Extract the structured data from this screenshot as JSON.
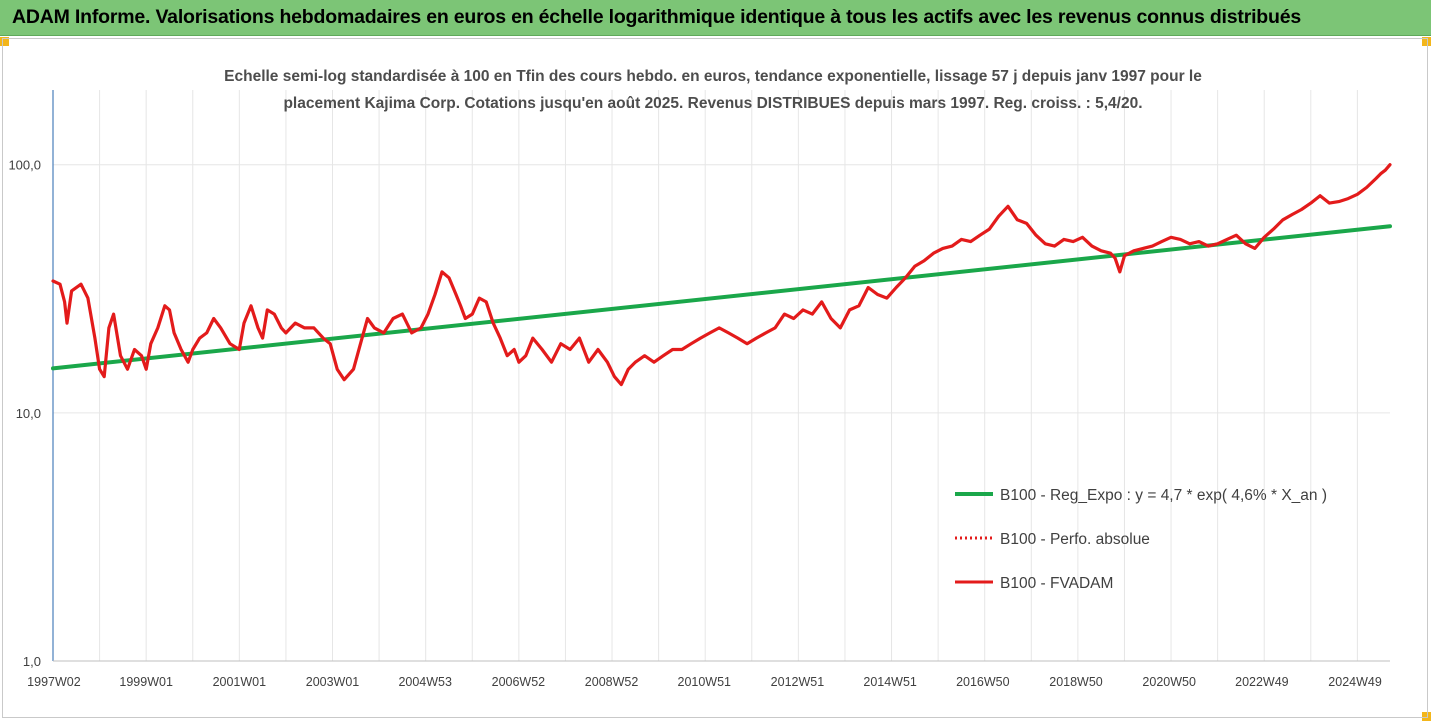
{
  "banner": {
    "title": "ADAM Informe. Valorisations hebdomadaires en euros en échelle logarithmique identique à tous les actifs avec les revenus connus distribués"
  },
  "colors": {
    "banner_bg": "#7cc576",
    "corner_marker": "#f3b61b",
    "reg_expo": "#1aa74a",
    "fvadam": "#e31b1b",
    "perfo_absolue": "#e31b1b",
    "axis_line": "#4a7ebb",
    "grid": "#e6e6e6",
    "text": "#404040",
    "title_text": "#4d4d4d"
  },
  "chart_data": {
    "type": "line",
    "title_lines": [
      "Echelle semi-log standardisée à 100 en Tfin des cours hebdo. en euros, tendance exponentielle, lissage 57 j depuis janv 1997 pour le",
      "placement Kajima Corp. Cotations jusqu'en août 2025. Revenus DISTRIBUES depuis mars 1997. Reg. croiss. : 5,4/20."
    ],
    "y_scale": "log",
    "ylim": [
      1,
      200
    ],
    "y_ticks": [
      1,
      10,
      100
    ],
    "y_tick_labels": [
      "1,0",
      "10,0",
      "100,0"
    ],
    "x_range": [
      1997.0,
      2025.7
    ],
    "x_tick_labels": [
      "1997W02",
      "1999W01",
      "2001W01",
      "2003W01",
      "2004W53",
      "2006W52",
      "2008W52",
      "2010W51",
      "2012W51",
      "2014W51",
      "2016W50",
      "2018W50",
      "2020W50",
      "2022W49",
      "2024W49"
    ],
    "x_tick_positions": [
      1997.02,
      1999.0,
      2001.0,
      2003.0,
      2004.99,
      2006.99,
      2008.99,
      2010.98,
      2012.98,
      2014.97,
      2016.96,
      2018.96,
      2020.96,
      2022.95,
      2024.95
    ],
    "grid": "vertical",
    "legend_position": "bottom-right",
    "series": [
      {
        "name": "B100 - Reg_Expo : y = 4,7 * exp( 4,6% *  X_an )",
        "style": "solid",
        "color": "#1aa74a",
        "x": [
          1997.0,
          2025.7
        ],
        "values": [
          15.1,
          56.5
        ]
      },
      {
        "name": "B100 - Perfo. absolue",
        "style": "dotted",
        "color": "#e31b1b",
        "x": [],
        "values": []
      },
      {
        "name": "B100 - FVADAM",
        "style": "solid",
        "color": "#e31b1b",
        "x": [
          1997.0,
          1997.15,
          1997.25,
          1997.3,
          1997.4,
          1997.6,
          1997.75,
          1997.9,
          1998.0,
          1998.1,
          1998.2,
          1998.3,
          1998.45,
          1998.6,
          1998.75,
          1998.9,
          1999.0,
          1999.1,
          1999.25,
          1999.4,
          1999.5,
          1999.6,
          1999.75,
          1999.9,
          2000.0,
          2000.15,
          2000.3,
          2000.45,
          2000.6,
          2000.8,
          2001.0,
          2001.1,
          2001.25,
          2001.4,
          2001.5,
          2001.6,
          2001.75,
          2001.9,
          2002.0,
          2002.2,
          2002.4,
          2002.6,
          2002.8,
          2002.95,
          2003.1,
          2003.25,
          2003.45,
          2003.6,
          2003.75,
          2003.9,
          2004.1,
          2004.3,
          2004.5,
          2004.7,
          2004.9,
          2005.05,
          2005.2,
          2005.35,
          2005.5,
          2005.65,
          2005.75,
          2005.85,
          2006.0,
          2006.15,
          2006.3,
          2006.45,
          2006.6,
          2006.75,
          2006.9,
          2007.0,
          2007.15,
          2007.3,
          2007.5,
          2007.7,
          2007.9,
          2008.1,
          2008.3,
          2008.5,
          2008.7,
          2008.9,
          2009.05,
          2009.2,
          2009.35,
          2009.5,
          2009.7,
          2009.9,
          2010.1,
          2010.3,
          2010.5,
          2010.7,
          2010.9,
          2011.1,
          2011.3,
          2011.5,
          2011.7,
          2011.9,
          2012.1,
          2012.3,
          2012.5,
          2012.7,
          2012.9,
          2013.1,
          2013.3,
          2013.5,
          2013.7,
          2013.9,
          2014.1,
          2014.3,
          2014.5,
          2014.7,
          2014.9,
          2015.1,
          2015.3,
          2015.5,
          2015.7,
          2015.9,
          2016.1,
          2016.3,
          2016.5,
          2016.7,
          2016.9,
          2017.1,
          2017.3,
          2017.5,
          2017.7,
          2017.9,
          2018.1,
          2018.3,
          2018.5,
          2018.7,
          2018.9,
          2019.1,
          2019.3,
          2019.5,
          2019.7,
          2019.8,
          2019.9,
          2020.0,
          2020.2,
          2020.4,
          2020.6,
          2020.8,
          2021.0,
          2021.2,
          2021.4,
          2021.6,
          2021.8,
          2022.0,
          2022.2,
          2022.4,
          2022.6,
          2022.8,
          2023.0,
          2023.2,
          2023.4,
          2023.6,
          2023.8,
          2024.0,
          2024.2,
          2024.4,
          2024.6,
          2024.8,
          2025.0,
          2025.2,
          2025.4,
          2025.5,
          2025.6,
          2025.7
        ],
        "values": [
          34,
          33,
          28,
          23,
          31,
          33,
          29,
          20,
          15,
          14,
          22,
          25,
          17,
          15,
          18,
          17,
          15,
          19,
          22,
          27,
          26,
          21,
          18,
          16,
          18,
          20,
          21,
          24,
          22,
          19,
          18,
          23,
          27,
          22,
          20,
          26,
          25,
          22,
          21,
          23,
          22,
          22,
          20,
          19,
          15,
          13.6,
          15,
          19,
          24,
          22,
          21,
          24,
          25,
          21,
          22,
          25,
          30,
          37,
          35,
          30,
          27,
          24,
          25,
          29,
          28,
          23,
          20,
          17,
          18,
          16,
          17,
          20,
          18,
          16,
          19,
          18,
          20,
          16,
          18,
          16,
          14,
          13,
          15,
          16,
          17,
          16,
          17,
          18,
          18,
          19,
          20,
          21,
          22,
          21,
          20,
          19,
          20,
          21,
          22,
          25,
          24,
          26,
          25,
          28,
          24,
          22,
          26,
          27,
          32,
          30,
          29,
          32,
          35,
          39,
          41,
          44,
          46,
          47,
          50,
          49,
          52,
          55,
          62,
          68,
          60,
          58,
          52,
          48,
          47,
          50,
          49,
          51,
          47,
          45,
          44,
          42,
          37,
          43,
          45,
          46,
          47,
          49,
          51,
          50,
          48,
          49,
          47,
          48,
          50,
          52,
          48,
          46,
          51,
          55,
          60,
          63,
          66,
          70,
          75,
          70,
          71,
          73,
          76,
          81,
          88,
          92,
          95,
          100
        ]
      }
    ]
  }
}
